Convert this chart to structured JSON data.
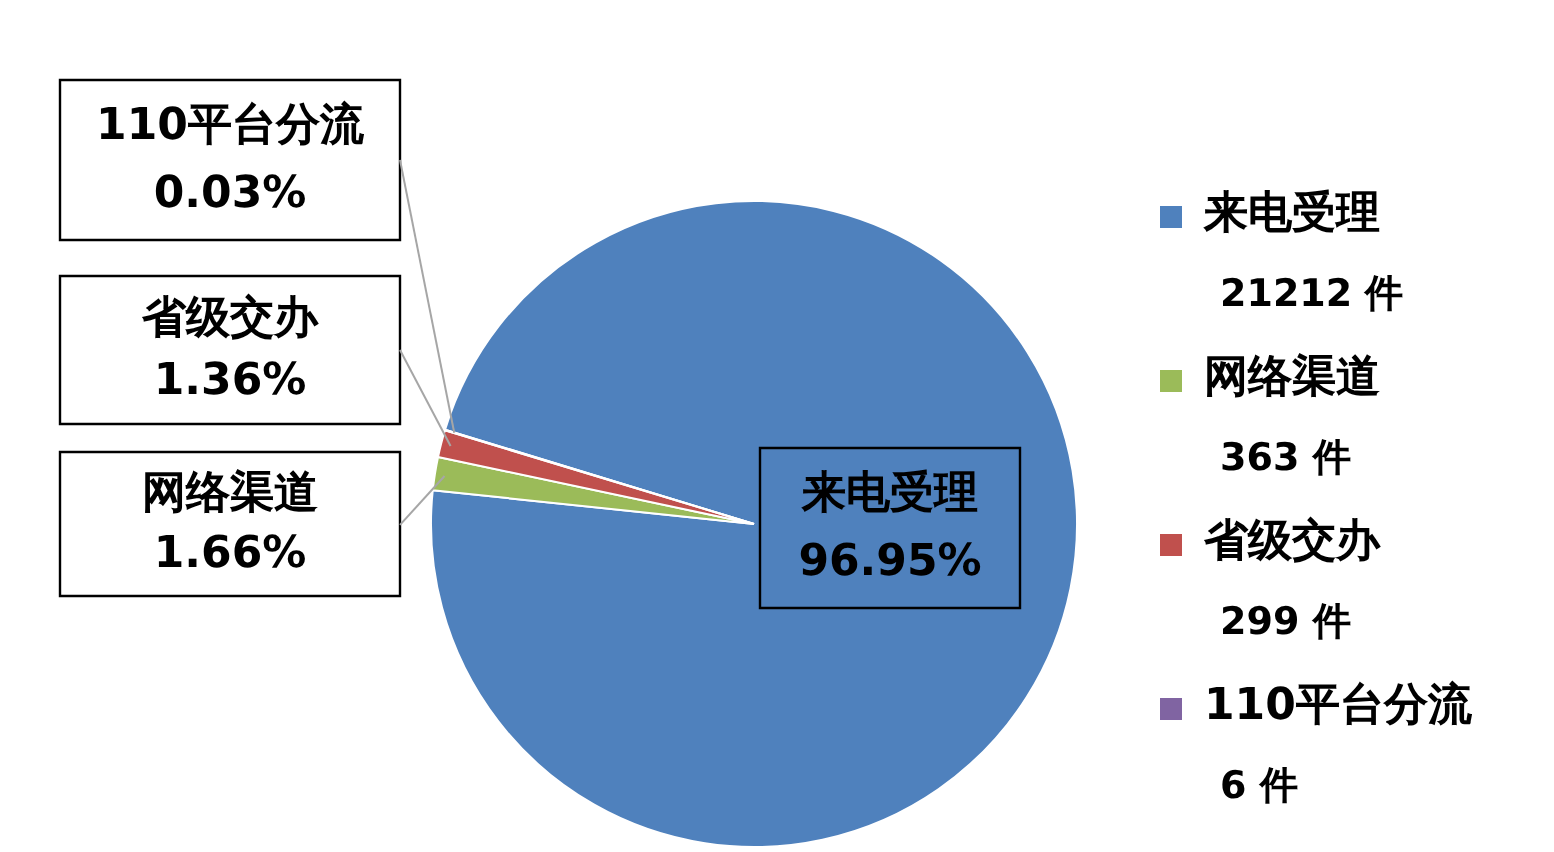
{
  "chart_data": {
    "type": "pie",
    "categories": [
      "来电受理",
      "网络渠道",
      "省级交办",
      "110平台分流"
    ],
    "values": [
      96.95,
      1.66,
      1.36,
      0.03
    ],
    "colors": [
      "#4f81bd",
      "#9bbb59",
      "#c0504d",
      "#8064a2"
    ],
    "value_labels": [
      "96.95%",
      "1.66%",
      "1.36%",
      "0.03%"
    ],
    "annotations": [
      "21212 件",
      "363 件",
      "299 件",
      "6 件"
    ],
    "legend": "right"
  }
}
